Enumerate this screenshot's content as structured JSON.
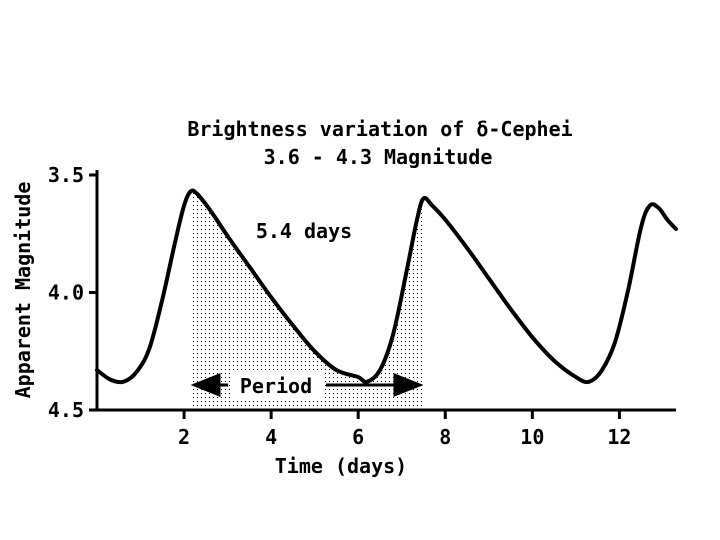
{
  "chart_data": {
    "type": "line",
    "title": "Brightness variation of δ-Cephei",
    "subtitle": "3.6 - 4.3 Magnitude",
    "xlabel": "Time (days)",
    "ylabel": "Apparent Magnitude",
    "xlim": [
      0,
      13.3
    ],
    "ylim": [
      4.5,
      3.5
    ],
    "y_inverted": true,
    "x_ticks": [
      2,
      4,
      6,
      8,
      10,
      12
    ],
    "x_tick_labels": [
      "2",
      "4",
      "6",
      "8",
      "10",
      "12"
    ],
    "y_ticks": [
      3.5,
      4.0,
      4.5
    ],
    "y_tick_labels": [
      "3.5",
      "4.0",
      "4.5"
    ],
    "grid": false,
    "series": [
      {
        "x": [
          0.0,
          0.3,
          0.6,
          0.9,
          1.2,
          1.5,
          1.8,
          2.0,
          2.15,
          2.3,
          2.6,
          3.0,
          3.5,
          4.0,
          4.5,
          5.0,
          5.5,
          6.0,
          6.2,
          6.5,
          6.8,
          7.1,
          7.35,
          7.5,
          7.7,
          8.0,
          8.5,
          9.0,
          9.5,
          10.0,
          10.5,
          11.0,
          11.3,
          11.6,
          11.9,
          12.2,
          12.5,
          12.7,
          12.9,
          13.1,
          13.3
        ],
        "y": [
          4.33,
          4.37,
          4.38,
          4.34,
          4.24,
          4.03,
          3.78,
          3.63,
          3.57,
          3.58,
          3.65,
          3.76,
          3.89,
          4.02,
          4.14,
          4.25,
          4.33,
          4.36,
          4.38,
          4.33,
          4.18,
          3.92,
          3.69,
          3.6,
          3.63,
          3.69,
          3.81,
          3.94,
          4.07,
          4.19,
          4.29,
          4.36,
          4.38,
          4.33,
          4.21,
          3.99,
          3.72,
          3.63,
          3.64,
          3.69,
          3.73
        ]
      }
    ],
    "shaded_region": {
      "x_start": 2.15,
      "x_end": 7.5
    },
    "annotations": {
      "period_value": "5.4 days",
      "period_label": "Period"
    }
  }
}
